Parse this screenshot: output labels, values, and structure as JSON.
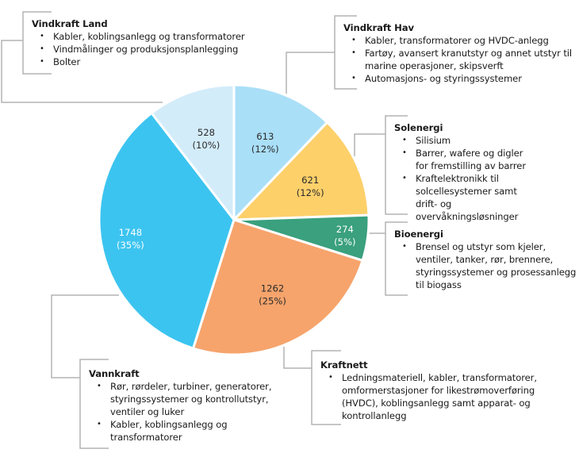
{
  "chart_data": {
    "type": "pie",
    "title": "",
    "start": "top",
    "direction": "clockwise",
    "slices": [
      {
        "key": "vindkraft-hav",
        "name": "Vindkraft Hav",
        "value": 613,
        "percent_label": "(12%)",
        "value_label": "613",
        "color": "#aadff8",
        "text_color": "#2a2a2a",
        "items": [
          "Kabler, transformatorer og HVDC-anlegg",
          "Fartøy, avansert kranutstyr og annet utstyr til marine operasjoner, skipsverft",
          "Automasjons- og styringssystemer"
        ]
      },
      {
        "key": "solenergi",
        "name": "Solenergi",
        "value": 621,
        "percent_label": "(12%)",
        "value_label": "621",
        "color": "#fdd06a",
        "text_color": "#2a2a2a",
        "items": [
          "Silisium",
          "Barrer, wafere og digler for fremstilling av barrer",
          "Kraftelektronikk til solcellesystemer samt drift- og overvåkningsløsninger"
        ]
      },
      {
        "key": "bioenergi",
        "name": "Bioenergi",
        "value": 274,
        "percent_label": "(5%)",
        "value_label": "274",
        "color": "#3aa07e",
        "text_color": "#ffffff",
        "items": [
          "Brensel og utstyr som kjeler, ventiler, tanker, rør, brennere, styringssystemer og prosessanlegg til biogass"
        ]
      },
      {
        "key": "kraftnett",
        "name": "Kraftnett",
        "value": 1262,
        "percent_label": "(25%)",
        "value_label": "1262",
        "color": "#f6a46c",
        "text_color": "#2a2a2a",
        "items": [
          "Ledningsmateriell, kabler, transformatorer, omformerstasjoner for likestrømoverføring (HVDC), koblingsanlegg samt apparat- og kontrollanlegg"
        ]
      },
      {
        "key": "vannkraft",
        "name": "Vannkraft",
        "value": 1748,
        "percent_label": "(35%)",
        "value_label": "1748",
        "color": "#3cc4f0",
        "text_color": "#ffffff",
        "items": [
          "Rør, rørdeler, turbiner, generatorer, styringssystemer og kontrollutstyr, ventiler og luker",
          "Kabler, koblingsanlegg og transformatorer"
        ]
      },
      {
        "key": "vindkraft-land",
        "name": "Vindkraft Land",
        "value": 528,
        "percent_label": "(10%)",
        "value_label": "528",
        "color": "#d3ecfa",
        "text_color": "#2a2a2a",
        "items": [
          "Kabler, koblingsanlegg og transformatorer",
          "Vindmålinger og produksjonsplanlegging",
          "Bolter"
        ]
      }
    ],
    "line_color": "#b4b4b4"
  }
}
